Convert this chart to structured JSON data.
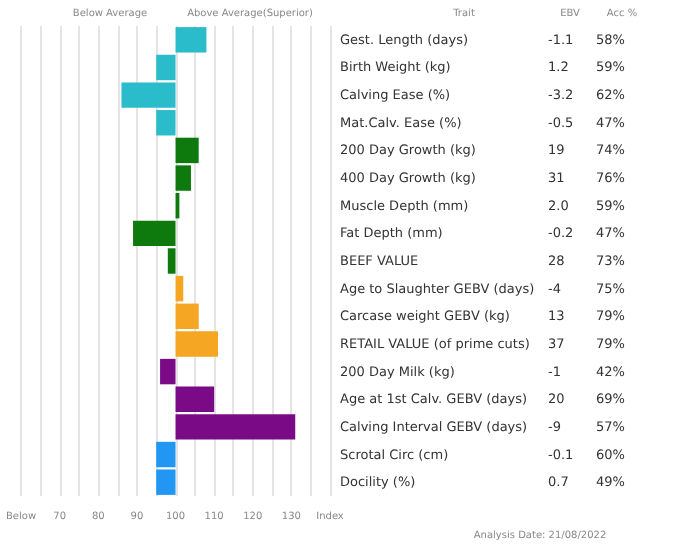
{
  "chart_data": {
    "type": "bar",
    "orientation": "horizontal",
    "categories": [
      "Gest. Length (days)",
      "Birth Weight (kg)",
      "Calving Ease (%)",
      "Mat.Calv. Ease (%)",
      "200 Day Growth (kg)",
      "400 Day Growth (kg)",
      "Muscle Depth (mm)",
      "Fat Depth (mm)",
      "BEEF VALUE",
      "Age to Slaughter GEBV (days)",
      "Carcase weight GEBV (kg)",
      "RETAIL VALUE (of prime cuts)",
      "200 Day Milk (kg)",
      "Age at 1st Calv. GEBV (days)",
      "Calving Interval GEBV (days)",
      "Scrotal Circ (cm)",
      "Docility (%)"
    ],
    "base": [
      100,
      100,
      100,
      100,
      100,
      100,
      100,
      100,
      100,
      100,
      100,
      100,
      100,
      100,
      100,
      100,
      100
    ],
    "values": [
      8,
      -5,
      -14,
      -5,
      6,
      4,
      1,
      -11,
      -2,
      2,
      6,
      11,
      -4,
      10,
      31,
      -5,
      -5
    ],
    "colors": [
      "#2bbccb",
      "#2bbccb",
      "#2bbccb",
      "#2bbccb",
      "#0e7a0e",
      "#0e7a0e",
      "#0e7a0e",
      "#0e7a0e",
      "#0e7a0e",
      "#f5a623",
      "#f5a623",
      "#f5a623",
      "#7a0a85",
      "#7a0a85",
      "#7a0a85",
      "#2196f3",
      "#2196f3"
    ],
    "xlim": [
      60,
      140
    ],
    "xticks": [
      {
        "value": 60,
        "label": "Below"
      },
      {
        "value": 65,
        "label": null
      },
      70,
      {
        "value": 75,
        "label": null
      },
      80,
      {
        "value": 85,
        "label": null
      },
      90,
      {
        "value": 95,
        "label": null
      },
      100,
      {
        "value": 105,
        "label": null
      },
      110,
      {
        "value": 115,
        "label": null
      },
      120,
      {
        "value": 125,
        "label": null
      },
      130,
      {
        "value": 135,
        "label": null
      },
      {
        "value": 140,
        "label": "Index"
      }
    ],
    "grid": "x",
    "annotations": [
      "Below Average",
      "Above Average(Superior)",
      "Trait",
      "EBV",
      "Acc %",
      "Analysis Date: 21/08/2022",
      "-1.1",
      "58%",
      "1.2",
      "59%",
      "-3.2",
      "62%",
      "-0.5",
      "47%",
      "19",
      "74%",
      "31",
      "76%",
      "2.0",
      "59%",
      "-0.2",
      "47%",
      "28",
      "73%",
      "-4",
      "75%",
      "13",
      "79%",
      "37",
      "79%",
      "-1",
      "42%",
      "20",
      "69%",
      "-9",
      "57%",
      "-0.1",
      "60%",
      "0.7",
      "49%"
    ]
  }
}
